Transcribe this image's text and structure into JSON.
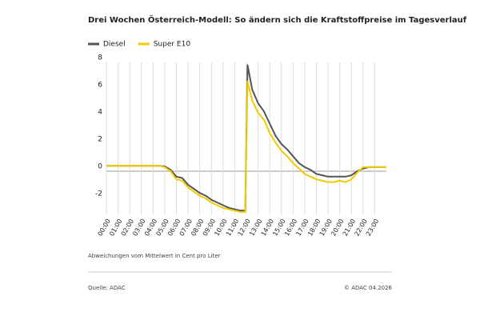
{
  "chart_data": {
    "type": "line",
    "title": "Drei Wochen Österreich-Modell: So ändern sich die Kraftstoffpreise im Tagesverlauf",
    "note": "Abweichungen vom Mittelwert in Cent pro Liter",
    "source": "Quelle: ADAC",
    "copyright": "© ADAC 04.2026",
    "x": [
      0,
      0.5,
      1,
      1.5,
      2,
      2.5,
      3,
      3.5,
      4,
      4.5,
      5,
      5.5,
      6,
      6.5,
      7,
      7.5,
      8,
      8.5,
      9,
      9.5,
      10,
      10.5,
      11,
      11.5,
      11.9,
      12.1,
      12.5,
      13,
      13.5,
      14,
      14.5,
      15,
      15.5,
      16,
      16.5,
      17,
      17.5,
      18,
      18.5,
      19,
      19.5,
      20,
      20.5,
      21,
      21.5,
      22,
      22.5,
      23,
      23.5,
      24
    ],
    "series": [
      {
        "name": "Diesel",
        "color": "#555555",
        "values": [
          0.4,
          0.4,
          0.4,
          0.4,
          0.4,
          0.4,
          0.4,
          0.4,
          0.4,
          0.4,
          0.35,
          0.1,
          -0.4,
          -0.5,
          -1.0,
          -1.3,
          -1.6,
          -1.8,
          -2.1,
          -2.3,
          -2.5,
          -2.7,
          -2.8,
          -2.9,
          -2.9,
          7.8,
          6.0,
          5.0,
          4.4,
          3.5,
          2.6,
          2.0,
          1.6,
          1.1,
          0.6,
          0.3,
          0.1,
          -0.2,
          -0.3,
          -0.4,
          -0.4,
          -0.4,
          -0.4,
          -0.3,
          0.0,
          0.2,
          0.3,
          0.3,
          0.3,
          0.3
        ]
      },
      {
        "name": "Super E10",
        "color": "#f2cc00",
        "values": [
          0.4,
          0.4,
          0.4,
          0.4,
          0.4,
          0.4,
          0.4,
          0.4,
          0.4,
          0.4,
          0.3,
          0.0,
          -0.6,
          -0.7,
          -1.2,
          -1.5,
          -1.8,
          -2.0,
          -2.3,
          -2.5,
          -2.7,
          -2.8,
          -2.9,
          -3.0,
          -3.0,
          6.6,
          5.2,
          4.3,
          3.8,
          2.8,
          2.1,
          1.5,
          1.1,
          0.6,
          0.2,
          -0.2,
          -0.4,
          -0.6,
          -0.7,
          -0.8,
          -0.8,
          -0.7,
          -0.8,
          -0.6,
          -0.1,
          0.3,
          0.3,
          0.3,
          0.3,
          0.3
        ]
      }
    ],
    "xlim": [
      0,
      24
    ],
    "xticks": [
      {
        "value": 0,
        "label": "00:00"
      },
      {
        "value": 1,
        "label": "01:00"
      },
      {
        "value": 2,
        "label": "02:00"
      },
      {
        "value": 3,
        "label": "03:00"
      },
      {
        "value": 4,
        "label": "04:00"
      },
      {
        "value": 5,
        "label": "05:00"
      },
      {
        "value": 6,
        "label": "06:00"
      },
      {
        "value": 7,
        "label": "07:00"
      },
      {
        "value": 8,
        "label": "08:00"
      },
      {
        "value": 9,
        "label": "09:00"
      },
      {
        "value": 10,
        "label": "10:00"
      },
      {
        "value": 11,
        "label": "11:00"
      },
      {
        "value": 12,
        "label": "12:00"
      },
      {
        "value": 13,
        "label": "13:00"
      },
      {
        "value": 14,
        "label": "14:00"
      },
      {
        "value": 15,
        "label": "15:00"
      },
      {
        "value": 16,
        "label": "16:00"
      },
      {
        "value": 17,
        "label": "17:00"
      },
      {
        "value": 18,
        "label": "18:00"
      },
      {
        "value": 19,
        "label": "19:00"
      },
      {
        "value": 20,
        "label": "20:00"
      },
      {
        "value": 21,
        "label": "21:00"
      },
      {
        "value": 22,
        "label": "22:00"
      },
      {
        "value": 23,
        "label": "23:00"
      }
    ],
    "ylim": [
      -3.2,
      8
    ],
    "yticks": [
      -2,
      0,
      2,
      4,
      6,
      8
    ],
    "grid": true,
    "legend": "top-left"
  }
}
